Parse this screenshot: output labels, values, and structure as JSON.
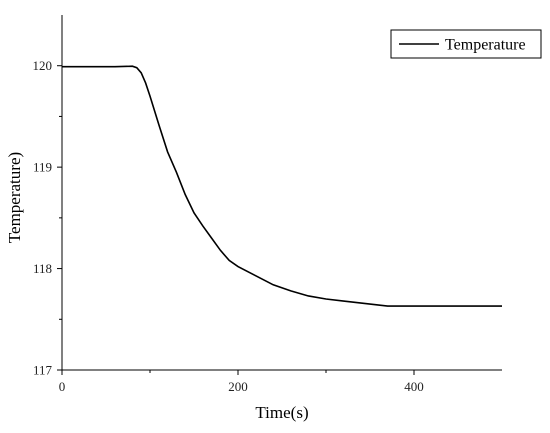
{
  "chart_data": {
    "type": "line",
    "title": "",
    "xlabel": "Time(s)",
    "ylabel": "Temperature)",
    "xlim": [
      0,
      500
    ],
    "ylim": [
      117,
      120.5
    ],
    "x_ticks": [
      0,
      200,
      400
    ],
    "y_ticks": [
      117,
      118,
      119,
      120
    ],
    "grid": false,
    "legend": {
      "position": "top-right",
      "entries": [
        "Temperature"
      ]
    },
    "series": [
      {
        "name": "Temperature",
        "color": "#000000",
        "x": [
          0,
          20,
          40,
          60,
          80,
          85,
          90,
          95,
          100,
          110,
          120,
          130,
          140,
          150,
          160,
          170,
          180,
          190,
          200,
          220,
          240,
          260,
          280,
          300,
          320,
          340,
          360,
          370,
          400,
          450,
          500
        ],
        "y": [
          119.99,
          119.99,
          119.99,
          119.99,
          119.995,
          119.98,
          119.93,
          119.83,
          119.7,
          119.42,
          119.15,
          118.95,
          118.73,
          118.55,
          118.42,
          118.3,
          118.18,
          118.08,
          118.02,
          117.93,
          117.84,
          117.78,
          117.73,
          117.7,
          117.68,
          117.66,
          117.64,
          117.63,
          117.63,
          117.63,
          117.63
        ]
      }
    ]
  }
}
